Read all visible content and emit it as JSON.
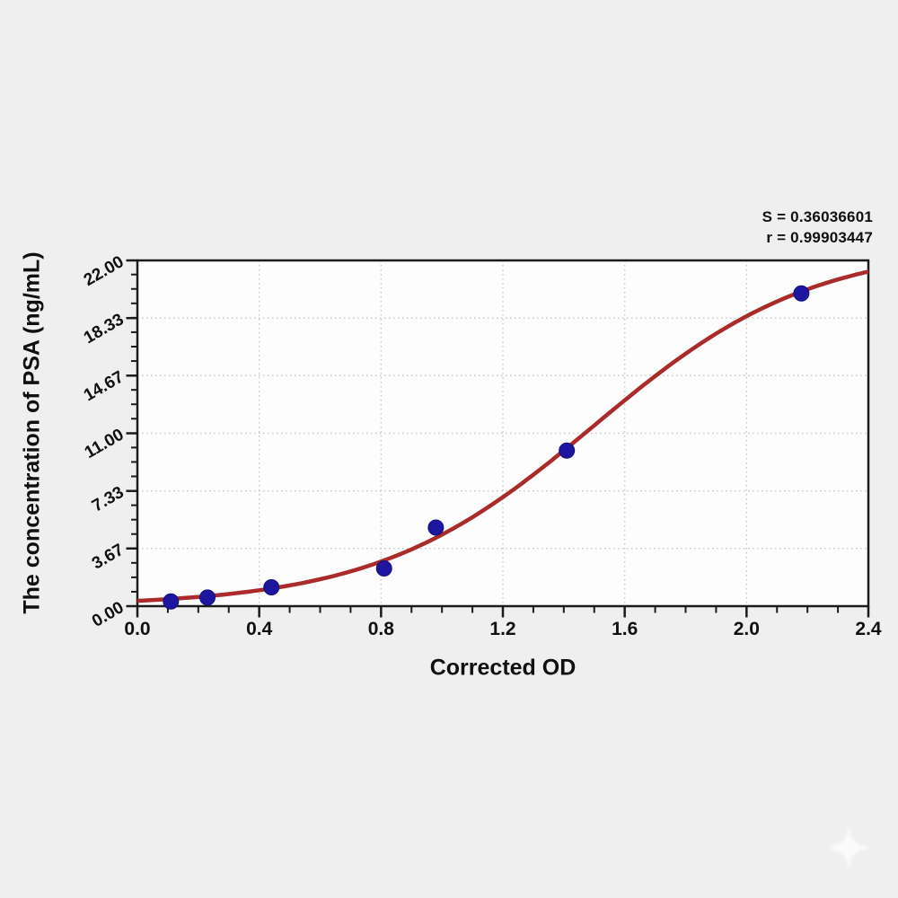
{
  "page": {
    "bg_color": "#efeff0"
  },
  "stats": {
    "s_value": "S = 0.36036601",
    "r_value": "r = 0.99903447"
  },
  "chart_data": {
    "type": "scatter",
    "title": "",
    "xlabel": "Corrected OD",
    "ylabel": "The concentration of PSA (ng/mL)",
    "xlim": [
      0.0,
      2.4
    ],
    "ylim": [
      0.0,
      22.0
    ],
    "x_ticks": {
      "values": [
        0.0,
        0.4,
        0.8,
        1.2,
        1.6,
        2.0,
        2.4
      ],
      "labels": [
        "0.0",
        "0.4",
        "0.8",
        "1.2",
        "1.6",
        "2.0",
        "2.4"
      ],
      "minor_step": 0.1
    },
    "y_ticks": {
      "values": [
        0.0,
        3.67,
        7.33,
        11.0,
        14.67,
        18.33,
        22.0
      ],
      "labels": [
        "0.00",
        "3.67",
        "7.33",
        "11.00",
        "14.67",
        "18.33",
        "22.00"
      ],
      "minor_step": 0.9175
    },
    "grid": {
      "show": true,
      "style": "dotted",
      "on_major_only": true,
      "color": "#c9c9c9"
    },
    "legend": "none",
    "series": [
      {
        "name": "standard-points",
        "type": "scatter",
        "color": "#1d17a0",
        "points": [
          {
            "x": 0.11,
            "y": 0.3
          },
          {
            "x": 0.23,
            "y": 0.55
          },
          {
            "x": 0.44,
            "y": 1.2
          },
          {
            "x": 0.81,
            "y": 2.4
          },
          {
            "x": 0.98,
            "y": 5.0
          },
          {
            "x": 1.41,
            "y": 9.9
          },
          {
            "x": 2.18,
            "y": 19.9
          }
        ]
      },
      {
        "name": "4pl-fit-curve",
        "type": "line",
        "color": "#ab2b2b",
        "logistic": {
          "L": 23.0,
          "k": 2.8,
          "x0": 1.5
        }
      }
    ],
    "annotations": [
      "S = 0.36036601",
      "r = 0.99903447"
    ],
    "colors": {
      "axis": "#1b1b1b",
      "text": "#101010",
      "plot_bg": "#fdfdfd",
      "curve": "#ab2b2b",
      "points": "#1d17a0",
      "grid": "#c9c9c9"
    }
  },
  "watermark": {
    "icon": "four-point-star",
    "color": "#fcfcfc"
  }
}
